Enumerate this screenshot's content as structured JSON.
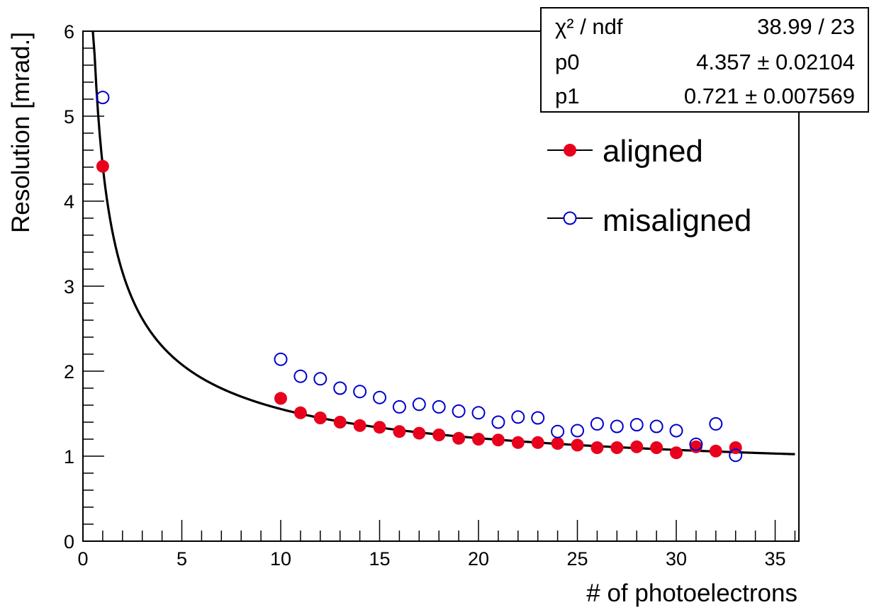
{
  "chart_data": {
    "type": "scatter",
    "xlabel": "# of photoelectrons",
    "ylabel": "Resolution [mrad.]",
    "xlim": [
      0,
      36.2
    ],
    "ylim": [
      0,
      6
    ],
    "x_ticks": [
      "0",
      "5",
      "10",
      "15",
      "20",
      "25",
      "30",
      "35"
    ],
    "y_ticks": [
      "0",
      "1",
      "2",
      "3",
      "4",
      "5",
      "6"
    ],
    "grid": false,
    "legend_position": "upper-right",
    "series": [
      {
        "name": "aligned",
        "marker": "filled-circle",
        "color": "#e8001c",
        "points": [
          [
            1,
            4.41
          ],
          [
            10,
            1.68
          ],
          [
            11,
            1.51
          ],
          [
            12,
            1.45
          ],
          [
            13,
            1.4
          ],
          [
            14,
            1.36
          ],
          [
            15,
            1.34
          ],
          [
            16,
            1.29
          ],
          [
            17,
            1.27
          ],
          [
            18,
            1.25
          ],
          [
            19,
            1.21
          ],
          [
            20,
            1.2
          ],
          [
            21,
            1.19
          ],
          [
            22,
            1.16
          ],
          [
            23,
            1.16
          ],
          [
            24,
            1.15
          ],
          [
            25,
            1.13
          ],
          [
            26,
            1.1
          ],
          [
            27,
            1.1
          ],
          [
            28,
            1.11
          ],
          [
            29,
            1.1
          ],
          [
            30,
            1.04
          ],
          [
            31,
            1.11
          ],
          [
            32,
            1.06
          ],
          [
            33,
            1.1
          ]
        ]
      },
      {
        "name": "misaligned",
        "marker": "open-circle",
        "color": "#0000cc",
        "points": [
          [
            1,
            5.22
          ],
          [
            10,
            2.14
          ],
          [
            11,
            1.94
          ],
          [
            12,
            1.91
          ],
          [
            13,
            1.8
          ],
          [
            14,
            1.76
          ],
          [
            15,
            1.69
          ],
          [
            16,
            1.58
          ],
          [
            17,
            1.61
          ],
          [
            18,
            1.58
          ],
          [
            19,
            1.53
          ],
          [
            20,
            1.51
          ],
          [
            21,
            1.4
          ],
          [
            22,
            1.46
          ],
          [
            23,
            1.45
          ],
          [
            24,
            1.29
          ],
          [
            25,
            1.3
          ],
          [
            26,
            1.38
          ],
          [
            27,
            1.35
          ],
          [
            28,
            1.37
          ],
          [
            29,
            1.35
          ],
          [
            30,
            1.3
          ],
          [
            31,
            1.14
          ],
          [
            32,
            1.38
          ],
          [
            33,
            1.01
          ]
        ]
      }
    ],
    "fit": {
      "function": "sqrt(p0^2 / x + p1^2)",
      "p0": 4.357,
      "p1": 0.721,
      "x_range": [
        0.5,
        36.0
      ],
      "color": "#000000"
    },
    "stats": {
      "rows": [
        {
          "label": "χ² / ndf",
          "value": "38.99 / 23"
        },
        {
          "label": "p0",
          "value": "4.357 ± 0.02104"
        },
        {
          "label": "p1",
          "value": "0.721 ± 0.007569"
        }
      ]
    }
  }
}
